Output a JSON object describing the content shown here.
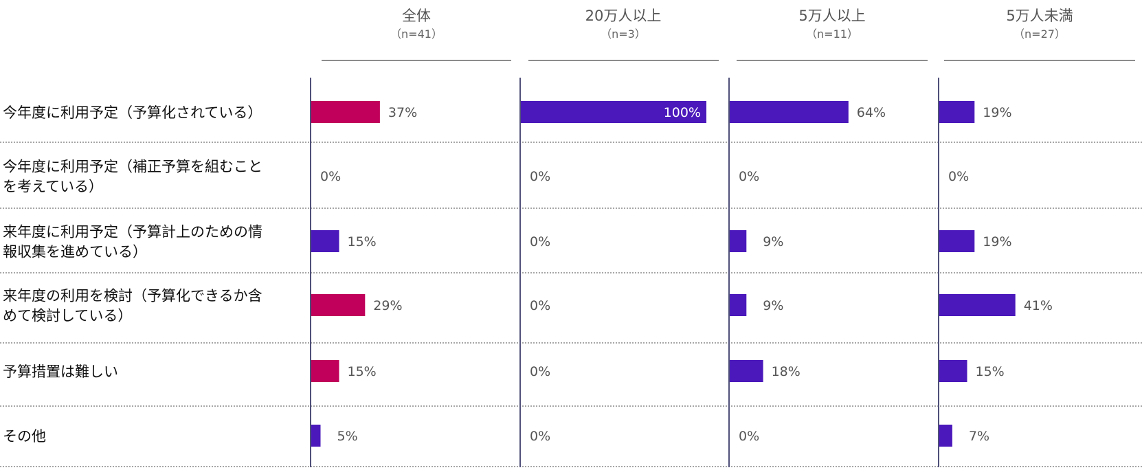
{
  "chart_data": {
    "type": "bar",
    "orientation": "horizontal",
    "categories": [
      "今年度に利用予定（予算化されている）",
      "今年度に利用予定（補正予算を組むことを考えている）",
      "来年度に利用予定（予算計上のための情報収集を進めている）",
      "来年度の利用を検討（予算化できるか含めて検討している）",
      "予算措置は難しい",
      "その他"
    ],
    "category_lines": [
      [
        "今年度に利用予定（予算化されている）"
      ],
      [
        "今年度に利用予定（補正予算を組むこと",
        "を考えている）"
      ],
      [
        "来年度に利用予定（予算計上のための情",
        "報収集を進めている）"
      ],
      [
        "来年度の利用を検討（予算化できるか含",
        "めて検討している）"
      ],
      [
        "予算措置は難しい"
      ],
      [
        "その他"
      ]
    ],
    "panels": [
      {
        "title": "全体",
        "n": "（n=41）",
        "values": [
          37,
          0,
          15,
          29,
          15,
          5
        ],
        "labels": [
          "37%",
          "0%",
          "15%",
          "29%",
          "15%",
          "5%"
        ],
        "colors": [
          "#c0005a",
          "#4a18bb",
          "#4a18bb",
          "#c0005a",
          "#c0005a",
          "#4a18bb"
        ]
      },
      {
        "title": "20万人以上",
        "n": "（n=3）",
        "values": [
          100,
          0,
          0,
          0,
          0,
          0
        ],
        "labels": [
          "100%",
          "0%",
          "0%",
          "0%",
          "0%",
          "0%"
        ],
        "colors": [
          "#4a18bb",
          "#4a18bb",
          "#4a18bb",
          "#4a18bb",
          "#4a18bb",
          "#4a18bb"
        ]
      },
      {
        "title": "5万人以上",
        "n": "（n=11）",
        "values": [
          64,
          0,
          9,
          9,
          18,
          0
        ],
        "labels": [
          "64%",
          "0%",
          "9%",
          "9%",
          "18%",
          "0%"
        ],
        "colors": [
          "#4a18bb",
          "#4a18bb",
          "#4a18bb",
          "#4a18bb",
          "#4a18bb",
          "#4a18bb"
        ]
      },
      {
        "title": "5万人未満",
        "n": "（n=27）",
        "values": [
          19,
          0,
          19,
          41,
          15,
          7
        ],
        "labels": [
          "19%",
          "0%",
          "19%",
          "41%",
          "15%",
          "7%"
        ],
        "colors": [
          "#4a18bb",
          "#4a18bb",
          "#4a18bb",
          "#4a18bb",
          "#4a18bb",
          "#4a18bb"
        ]
      }
    ],
    "xlim": [
      0,
      100
    ],
    "grid": false,
    "legend": "none"
  },
  "colors": {
    "accent_red": "#c0005a",
    "accent_purple": "#4a18bb",
    "axis": "#50507a",
    "separator": "#888888",
    "value_text": "#555555"
  }
}
